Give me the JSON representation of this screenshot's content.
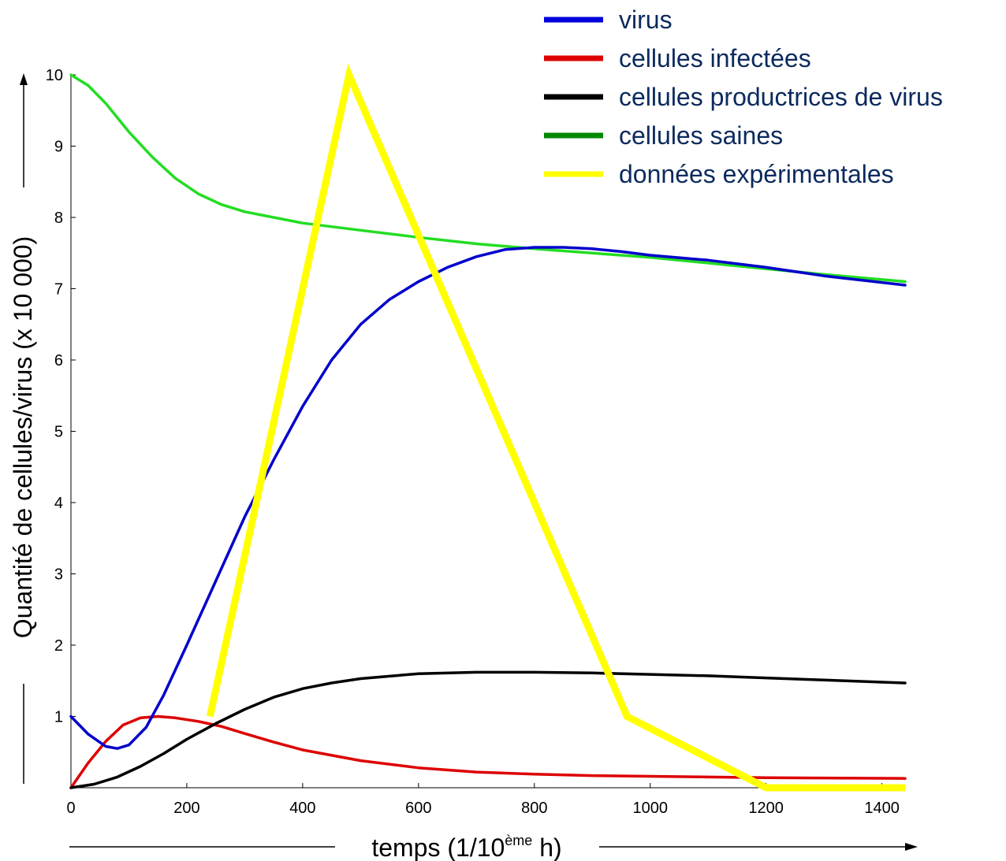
{
  "chart_data": {
    "type": "line",
    "xlabel_main": "temps (1/10",
    "xlabel_sup": "ème",
    "xlabel_end": " h)",
    "ylabel": "Quantité de cellules/virus (x 10 000)",
    "xlim": [
      0,
      1440
    ],
    "ylim": [
      0,
      10
    ],
    "x_ticks": [
      "0",
      "200",
      "400",
      "600",
      "800",
      "1000",
      "1200",
      "1400"
    ],
    "x_tick_values": [
      0,
      200,
      400,
      600,
      800,
      1000,
      1200,
      1400
    ],
    "y_ticks": [
      "1",
      "2",
      "3",
      "4",
      "5",
      "6",
      "7",
      "8",
      "9",
      "10"
    ],
    "y_tick_values": [
      1,
      2,
      3,
      4,
      5,
      6,
      7,
      8,
      9,
      10
    ],
    "grid": false,
    "legend_position": "top-right",
    "series": [
      {
        "name": "virus",
        "color": "#0000cc",
        "points": [
          [
            0,
            1.0
          ],
          [
            30,
            0.75
          ],
          [
            60,
            0.58
          ],
          [
            80,
            0.55
          ],
          [
            100,
            0.6
          ],
          [
            130,
            0.85
          ],
          [
            160,
            1.3
          ],
          [
            200,
            2.0
          ],
          [
            250,
            2.9
          ],
          [
            300,
            3.8
          ],
          [
            350,
            4.6
          ],
          [
            400,
            5.35
          ],
          [
            450,
            6.0
          ],
          [
            500,
            6.5
          ],
          [
            550,
            6.85
          ],
          [
            600,
            7.1
          ],
          [
            650,
            7.3
          ],
          [
            700,
            7.45
          ],
          [
            750,
            7.55
          ],
          [
            800,
            7.58
          ],
          [
            850,
            7.58
          ],
          [
            900,
            7.56
          ],
          [
            950,
            7.52
          ],
          [
            1000,
            7.47
          ],
          [
            1100,
            7.4
          ],
          [
            1200,
            7.3
          ],
          [
            1300,
            7.18
          ],
          [
            1440,
            7.05
          ]
        ]
      },
      {
        "name": "cellules infectées",
        "color": "#dd0000",
        "points": [
          [
            0,
            0.0
          ],
          [
            30,
            0.35
          ],
          [
            60,
            0.65
          ],
          [
            90,
            0.88
          ],
          [
            120,
            0.98
          ],
          [
            150,
            1.0
          ],
          [
            180,
            0.98
          ],
          [
            220,
            0.93
          ],
          [
            260,
            0.86
          ],
          [
            300,
            0.76
          ],
          [
            350,
            0.64
          ],
          [
            400,
            0.53
          ],
          [
            500,
            0.38
          ],
          [
            600,
            0.28
          ],
          [
            700,
            0.22
          ],
          [
            800,
            0.19
          ],
          [
            900,
            0.17
          ],
          [
            1000,
            0.16
          ],
          [
            1200,
            0.14
          ],
          [
            1440,
            0.13
          ]
        ]
      },
      {
        "name": "cellules productrices de virus",
        "color": "#000000",
        "points": [
          [
            0,
            0.0
          ],
          [
            40,
            0.05
          ],
          [
            80,
            0.15
          ],
          [
            120,
            0.3
          ],
          [
            160,
            0.48
          ],
          [
            200,
            0.68
          ],
          [
            250,
            0.9
          ],
          [
            300,
            1.1
          ],
          [
            350,
            1.27
          ],
          [
            400,
            1.39
          ],
          [
            450,
            1.47
          ],
          [
            500,
            1.53
          ],
          [
            600,
            1.6
          ],
          [
            700,
            1.62
          ],
          [
            800,
            1.62
          ],
          [
            900,
            1.61
          ],
          [
            1000,
            1.59
          ],
          [
            1100,
            1.57
          ],
          [
            1200,
            1.54
          ],
          [
            1300,
            1.51
          ],
          [
            1440,
            1.47
          ]
        ]
      },
      {
        "name": "cellules saines",
        "color": "#22dd22",
        "points": [
          [
            0,
            10.0
          ],
          [
            30,
            9.85
          ],
          [
            60,
            9.6
          ],
          [
            100,
            9.2
          ],
          [
            140,
            8.85
          ],
          [
            180,
            8.55
          ],
          [
            220,
            8.33
          ],
          [
            260,
            8.18
          ],
          [
            300,
            8.08
          ],
          [
            400,
            7.92
          ],
          [
            500,
            7.82
          ],
          [
            600,
            7.72
          ],
          [
            700,
            7.63
          ],
          [
            800,
            7.56
          ],
          [
            900,
            7.5
          ],
          [
            1000,
            7.44
          ],
          [
            1100,
            7.36
          ],
          [
            1200,
            7.28
          ],
          [
            1300,
            7.2
          ],
          [
            1440,
            7.1
          ]
        ]
      },
      {
        "name": "données expérimentales",
        "color": "#ffff00",
        "legend_color": "#ffff00",
        "points": [
          [
            240,
            1.0
          ],
          [
            480,
            10.0
          ],
          [
            960,
            1.0
          ],
          [
            1200,
            0.0
          ],
          [
            1440,
            0.0
          ]
        ]
      }
    ],
    "legend_colors": [
      "#0000dd",
      "#dd0000",
      "#000000",
      "#008800",
      "#ffff00"
    ]
  }
}
